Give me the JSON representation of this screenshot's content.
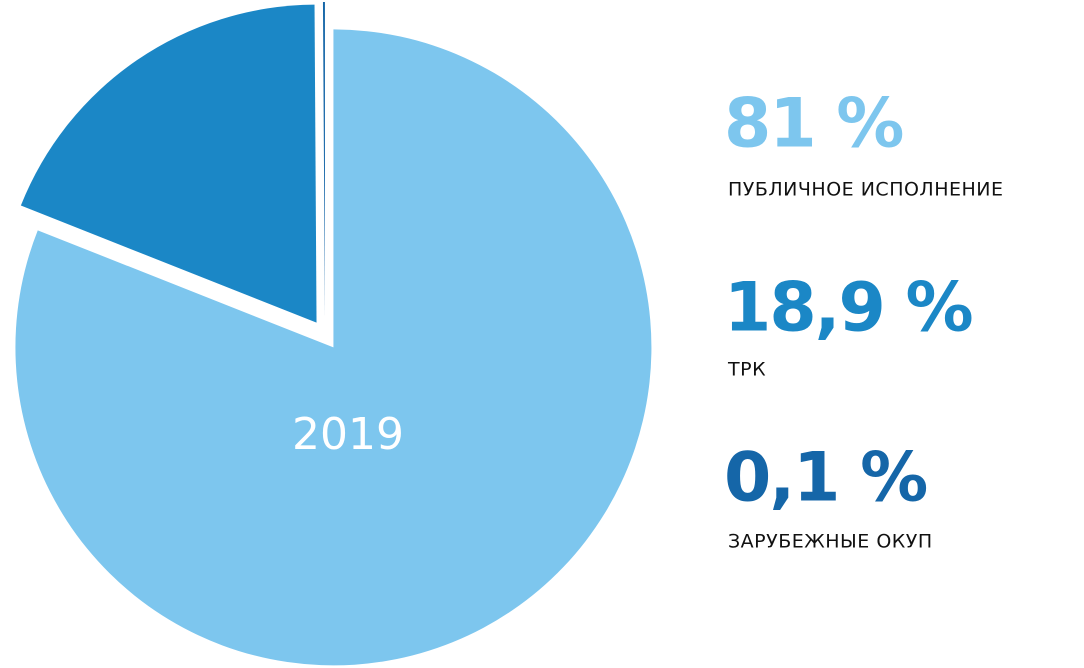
{
  "chart_data": {
    "type": "pie",
    "title": "2019",
    "categories": [
      "ПУБЛИЧНОЕ ИСПОЛНЕНИЕ",
      "ТРК",
      "ЗАРУБЕЖНЫЕ ОКУП"
    ],
    "values": [
      81,
      18.9,
      0.1
    ],
    "value_labels": [
      "81 %",
      "18,9 %",
      "0,1 %"
    ],
    "colors": [
      "#7dc6ee",
      "#1b87c6",
      "#1566a8"
    ],
    "legend": "right"
  }
}
